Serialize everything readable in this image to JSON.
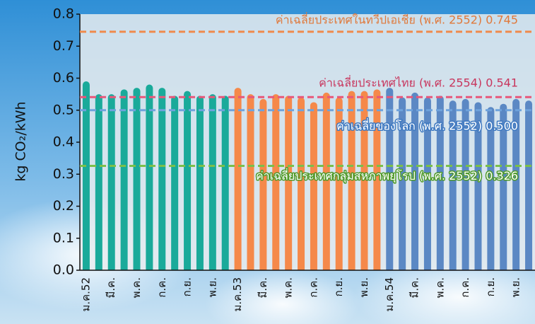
{
  "chart_data": {
    "type": "bar",
    "y_label": "kg CO₂/kWh",
    "categories": [
      "ม.ค.52",
      null,
      "มี.ค.",
      null,
      "พ.ค.",
      null,
      "ก.ค.",
      null,
      "ก.ย.",
      null,
      "พ.ย.",
      null,
      "ม.ค.53",
      null,
      "มี.ค.",
      null,
      "พ.ค.",
      null,
      "ก.ค.",
      null,
      "ก.ย.",
      null,
      "พ.ย.",
      null,
      "ม.ค.54",
      null,
      "มี.ค.",
      null,
      "พ.ค.",
      null,
      "ก.ค.",
      null,
      "ก.ย.",
      null,
      "พ.ย.",
      null
    ],
    "values": [
      0.59,
      0.55,
      0.55,
      0.565,
      0.57,
      0.58,
      0.57,
      0.545,
      0.56,
      0.545,
      0.55,
      0.545,
      0.57,
      0.55,
      0.535,
      0.55,
      0.545,
      0.54,
      0.525,
      0.555,
      0.54,
      0.56,
      0.56,
      0.565,
      0.57,
      0.54,
      0.555,
      0.54,
      0.545,
      0.53,
      0.535,
      0.525,
      0.51,
      0.52,
      0.535,
      0.53
    ],
    "colors": [
      "#1aaa9a",
      "#1aaa9a",
      "#1aaa9a",
      "#1aaa9a",
      "#1aaa9a",
      "#1aaa9a",
      "#1aaa9a",
      "#1aaa9a",
      "#1aaa9a",
      "#1aaa9a",
      "#1aaa9a",
      "#1aaa9a",
      "#f5894a",
      "#f5894a",
      "#f5894a",
      "#f5894a",
      "#f5894a",
      "#f5894a",
      "#f5894a",
      "#f5894a",
      "#f5894a",
      "#f5894a",
      "#f5894a",
      "#f5894a",
      "#5b88c4",
      "#5b88c4",
      "#5b88c4",
      "#5b88c4",
      "#5b88c4",
      "#5b88c4",
      "#5b88c4",
      "#5b88c4",
      "#5b88c4",
      "#5b88c4",
      "#5b88c4",
      "#5b88c4"
    ],
    "ylim": [
      0,
      0.8
    ],
    "yticks": [
      {
        "value": 0,
        "label": "0.0"
      },
      0.1,
      0.2,
      0.3,
      0.4,
      0.5,
      0.6,
      0.7,
      0.8
    ],
    "reference_lines": [
      {
        "value": 0.745,
        "label": "ค่าเฉลี่ยประเทศในทวีปเอเชีย (พ.ศ. 2552) 0.745",
        "color": "#f08a4b",
        "text_color": "#e0783a",
        "outlined": false
      },
      {
        "value": 0.541,
        "label": "ค่าเฉลี่ยประเทศไทย (พ.ศ. 2554) 0.541",
        "color": "#e8577a",
        "text_color": "#c8365d",
        "outlined": false
      },
      {
        "value": 0.5,
        "label": "ค่าเฉลี่ยของโลก (พ.ศ. 2552) 0.500",
        "color": "#6fa3dc",
        "text_color": "#3d78c0",
        "outlined": true
      },
      {
        "value": 0.326,
        "label": "ค่าเฉลี่ยประเทศกลุ่มสหภาพยุโรป (พ.ศ. 2552) 0.326",
        "color": "#7bbf4a",
        "text_color": "#4f9a2a",
        "outlined": true
      }
    ]
  }
}
